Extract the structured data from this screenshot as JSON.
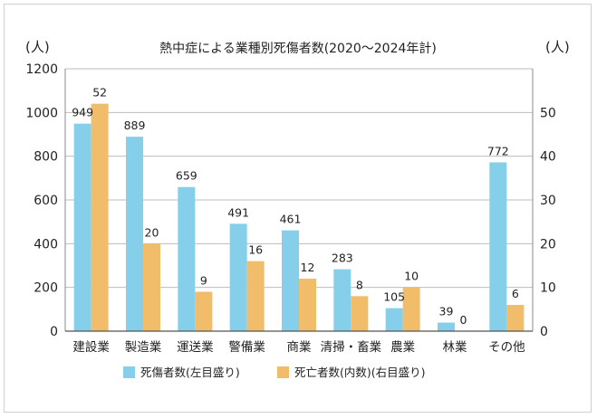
{
  "chart_data": {
    "type": "bar",
    "title": "熱中症による業種別死傷者数(2020〜2024年計)",
    "y_left_unit": "(人)",
    "y_right_unit": "(人)",
    "categories": [
      "建設業",
      "製造業",
      "運送業",
      "警備業",
      "商業",
      "清掃・畜業",
      "農業",
      "林業",
      "その他"
    ],
    "series": [
      {
        "name": "死傷者数(左目盛り)",
        "axis": "left",
        "color": "#85CFEA",
        "values": [
          949,
          889,
          659,
          491,
          461,
          283,
          105,
          39,
          772
        ]
      },
      {
        "name": "死亡者数(内数)(右目盛り)",
        "axis": "right",
        "color": "#F2BD6B",
        "values": [
          52,
          20,
          9,
          16,
          12,
          8,
          10,
          0,
          6
        ]
      }
    ],
    "y_left": {
      "min": 0,
      "max": 1200,
      "ticks": [
        "0",
        "200",
        "400",
        "600",
        "800",
        "1000",
        "1200"
      ]
    },
    "y_right": {
      "min": 0,
      "max": 60,
      "ticks": [
        "0",
        "10",
        "20",
        "30",
        "40",
        "50"
      ]
    },
    "grid": true,
    "legend_position": "bottom"
  }
}
